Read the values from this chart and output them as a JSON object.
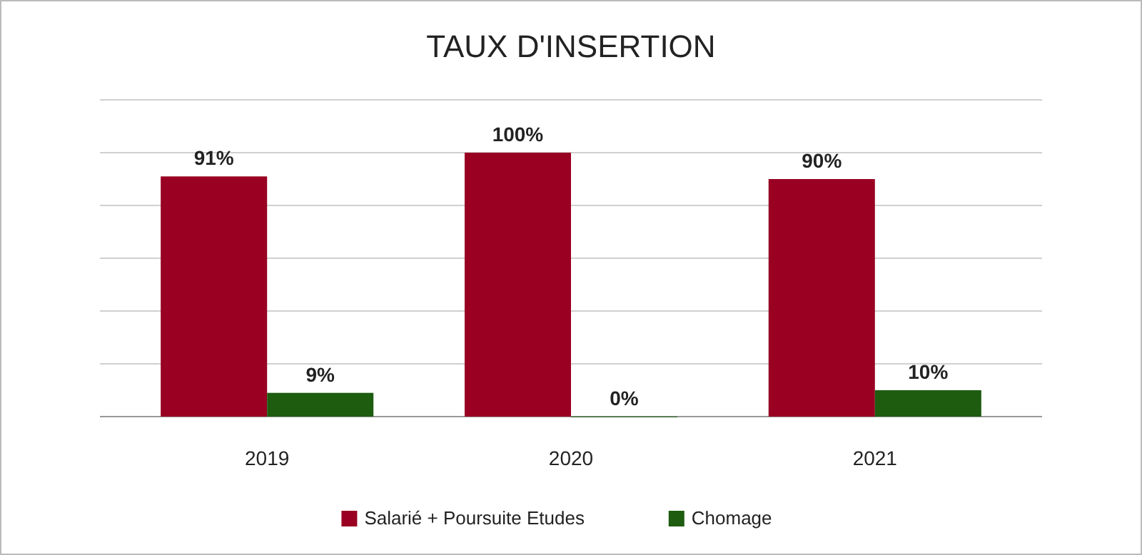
{
  "chart_data": {
    "type": "bar",
    "title": "TAUX D'INSERTION",
    "categories": [
      "2019",
      "2020",
      "2021"
    ],
    "series": [
      {
        "name": "Salarié + Poursuite Etudes",
        "color": "#990022",
        "values": [
          91,
          100,
          90
        ],
        "value_labels": [
          "91%",
          "100%",
          "90%"
        ]
      },
      {
        "name": "Chomage",
        "color": "#1e5c10",
        "values": [
          9,
          0,
          10
        ],
        "value_labels": [
          "9%",
          "0%",
          "10%"
        ]
      }
    ],
    "ylim": [
      0,
      120
    ],
    "yticks": [
      {
        "value": 0,
        "label": null
      },
      {
        "value": 20,
        "label": null
      },
      {
        "value": 40,
        "label": null
      },
      {
        "value": 60,
        "label": null
      },
      {
        "value": 80,
        "label": null
      },
      {
        "value": 100,
        "label": null
      },
      {
        "value": 120,
        "label": null
      }
    ],
    "tick_labels": "x",
    "grid": "y",
    "legend": "bottom"
  }
}
